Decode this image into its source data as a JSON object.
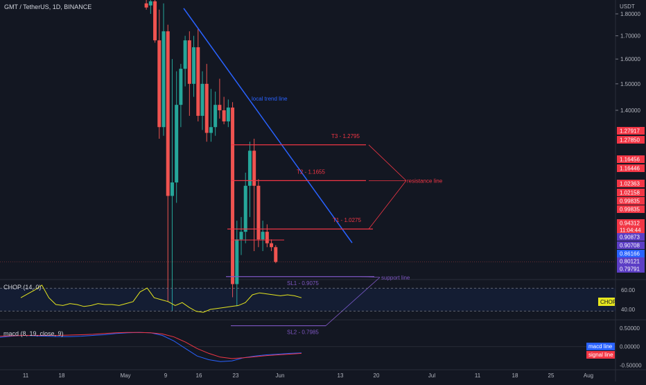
{
  "header": {
    "symbol": "GMT / TetherUS, 1D, BINANCE",
    "currency": "USDT"
  },
  "colors": {
    "background": "#131722",
    "up": "#26a69a",
    "down": "#ef5350",
    "trendline": "#2962ff",
    "target": "#f23645",
    "support": "#7e57c2",
    "chop": "#e6e61e",
    "macd": "#2962ff",
    "signal": "#f23645"
  },
  "chart_data": [
    {
      "type": "candlestick",
      "ylim": [
        0.72,
        1.88
      ],
      "yscale": "log",
      "y_ticks": [
        "1.80000",
        "1.70000",
        "1.60000",
        "1.50000",
        "1.40000"
      ],
      "x_ticks": [
        "11",
        "18",
        "May",
        "9",
        "16",
        "23",
        "Jun",
        "13",
        "20",
        "Jul",
        "11",
        "18",
        "25",
        "Aug"
      ],
      "candles": [
        {
          "x": "May 6",
          "o": 1.85,
          "h": 1.9,
          "l": 1.82,
          "c": 1.83
        },
        {
          "x": "May 7",
          "o": 1.84,
          "h": 1.9,
          "l": 1.8,
          "c": 1.86
        },
        {
          "x": "May 8",
          "o": 1.86,
          "h": 1.88,
          "l": 1.67,
          "c": 1.68
        },
        {
          "x": "May 9",
          "o": 1.68,
          "h": 1.82,
          "l": 1.3,
          "c": 1.34
        },
        {
          "x": "May 10",
          "o": 1.34,
          "h": 1.85,
          "l": 1.31,
          "c": 1.72
        },
        {
          "x": "May 11",
          "o": 1.72,
          "h": 1.75,
          "l": 0.85,
          "c": 1.12
        },
        {
          "x": "May 12",
          "o": 1.12,
          "h": 1.6,
          "l": 0.83,
          "c": 1.16
        },
        {
          "x": "May 13",
          "o": 1.16,
          "h": 1.55,
          "l": 1.1,
          "c": 1.42
        },
        {
          "x": "May 14",
          "o": 1.42,
          "h": 1.58,
          "l": 1.34,
          "c": 1.56
        },
        {
          "x": "May 15",
          "o": 1.56,
          "h": 1.7,
          "l": 1.49,
          "c": 1.68
        },
        {
          "x": "May 16",
          "o": 1.68,
          "h": 1.72,
          "l": 1.38,
          "c": 1.5
        },
        {
          "x": "May 17",
          "o": 1.5,
          "h": 1.7,
          "l": 1.45,
          "c": 1.65
        },
        {
          "x": "May 18",
          "o": 1.65,
          "h": 1.73,
          "l": 1.36,
          "c": 1.38
        },
        {
          "x": "May 19",
          "o": 1.38,
          "h": 1.55,
          "l": 1.33,
          "c": 1.5
        },
        {
          "x": "May 20",
          "o": 1.5,
          "h": 1.58,
          "l": 1.29,
          "c": 1.32
        },
        {
          "x": "May 21",
          "o": 1.32,
          "h": 1.48,
          "l": 1.29,
          "c": 1.34
        },
        {
          "x": "May 22",
          "o": 1.34,
          "h": 1.47,
          "l": 1.31,
          "c": 1.42
        },
        {
          "x": "May 23",
          "o": 1.42,
          "h": 1.52,
          "l": 1.37,
          "c": 1.4
        },
        {
          "x": "May 24",
          "o": 1.4,
          "h": 1.45,
          "l": 1.35,
          "c": 1.36
        },
        {
          "x": "May 25",
          "o": 1.36,
          "h": 1.44,
          "l": 1.34,
          "c": 1.41
        },
        {
          "x": "May 26",
          "o": 1.41,
          "h": 1.43,
          "l": 0.86,
          "c": 0.89
        },
        {
          "x": "May 27",
          "o": 0.89,
          "h": 1.05,
          "l": 0.84,
          "c": 1.0
        },
        {
          "x": "May 28",
          "o": 1.0,
          "h": 1.06,
          "l": 0.96,
          "c": 1.02
        },
        {
          "x": "May 29",
          "o": 1.02,
          "h": 1.19,
          "l": 0.99,
          "c": 1.15
        },
        {
          "x": "May 30",
          "o": 1.15,
          "h": 1.29,
          "l": 1.06,
          "c": 1.26
        },
        {
          "x": "May 31",
          "o": 1.26,
          "h": 1.3,
          "l": 0.97,
          "c": 1.15
        },
        {
          "x": "Jun 1",
          "o": 1.15,
          "h": 1.17,
          "l": 0.98,
          "c": 1.0
        },
        {
          "x": "Jun 2",
          "o": 1.0,
          "h": 1.05,
          "l": 0.97,
          "c": 1.02
        },
        {
          "x": "Jun 3",
          "o": 1.02,
          "h": 1.04,
          "l": 0.98,
          "c": 0.99
        },
        {
          "x": "Jun 4",
          "o": 0.99,
          "h": 1.0,
          "l": 0.97,
          "c": 0.98
        },
        {
          "x": "Jun 5",
          "o": 0.98,
          "h": 0.985,
          "l": 0.94,
          "c": 0.943
        }
      ],
      "annotations": [
        {
          "text": "local trend line"
        },
        {
          "text": "T3 - 1.2795",
          "value": 1.2795
        },
        {
          "text": "T2 - 1.1655",
          "value": 1.1655
        },
        {
          "text": "T1 - 1.0275",
          "value": 1.0275
        },
        {
          "text": "resistance line"
        },
        {
          "text": "SL1 - 0.9075",
          "value": 0.9075
        },
        {
          "text": "SL2 - 0.7985",
          "value": 0.7985
        },
        {
          "text": "support line"
        }
      ],
      "price_labels": [
        {
          "text": "1.27917",
          "kind": "red"
        },
        {
          "text": "1.27850",
          "kind": "red"
        },
        {
          "text": "1.16456",
          "kind": "red"
        },
        {
          "text": "1.16446",
          "kind": "red"
        },
        {
          "text": "1.02363",
          "kind": "red"
        },
        {
          "text": "1.02158",
          "kind": "red"
        },
        {
          "text": "0.99835",
          "kind": "red"
        },
        {
          "text": "0.99835",
          "kind": "red"
        },
        {
          "text": "0.94312",
          "kind": "red"
        },
        {
          "text": "11:04:44",
          "kind": "red"
        },
        {
          "text": "0.90873",
          "kind": "purple"
        },
        {
          "text": "0.90708",
          "kind": "purple"
        },
        {
          "text": "0.86166",
          "kind": "blue"
        },
        {
          "text": "0.80121",
          "kind": "purple"
        },
        {
          "text": "0.79791",
          "kind": "purple"
        }
      ]
    },
    {
      "type": "line",
      "name": "CHOP (14, 0)",
      "ylim": [
        30,
        70
      ],
      "y_ticks": [
        "60.00",
        "40.00"
      ],
      "band": [
        61.8,
        38.2
      ],
      "series": [
        {
          "name": "CHOP",
          "values": [
            52,
            56,
            60,
            65,
            52,
            45,
            44,
            46,
            45,
            43,
            44,
            46,
            45,
            45,
            44,
            46,
            48,
            58,
            62,
            52,
            50,
            48,
            44,
            47,
            42,
            38,
            37,
            40,
            41,
            42,
            43,
            44,
            47,
            55,
            57,
            56,
            55,
            54,
            55,
            54,
            52
          ]
        }
      ],
      "badge": "CHOP"
    },
    {
      "type": "line",
      "name": "macd (8, 19, close, 9)",
      "ylim": [
        -0.6,
        0.7
      ],
      "y_ticks": [
        "0.50000",
        "0.00000",
        "-0.50000"
      ],
      "series": [
        {
          "name": "macd line",
          "values": [
            0.25,
            0.28,
            0.3,
            0.29,
            0.28,
            0.27,
            0.27,
            0.28,
            0.3,
            0.32,
            0.35,
            0.37,
            0.38,
            0.37,
            0.3,
            0.15,
            -0.05,
            -0.25,
            -0.35,
            -0.4,
            -0.38,
            -0.3,
            -0.25,
            -0.22,
            -0.2,
            -0.18,
            -0.17
          ]
        },
        {
          "name": "signal line",
          "values": [
            0.28,
            0.29,
            0.3,
            0.3,
            0.3,
            0.3,
            0.31,
            0.32,
            0.33,
            0.35,
            0.37,
            0.38,
            0.38,
            0.37,
            0.34,
            0.26,
            0.12,
            -0.05,
            -0.18,
            -0.28,
            -0.32,
            -0.3,
            -0.27,
            -0.24,
            -0.22,
            -0.2,
            -0.18
          ]
        }
      ]
    }
  ]
}
